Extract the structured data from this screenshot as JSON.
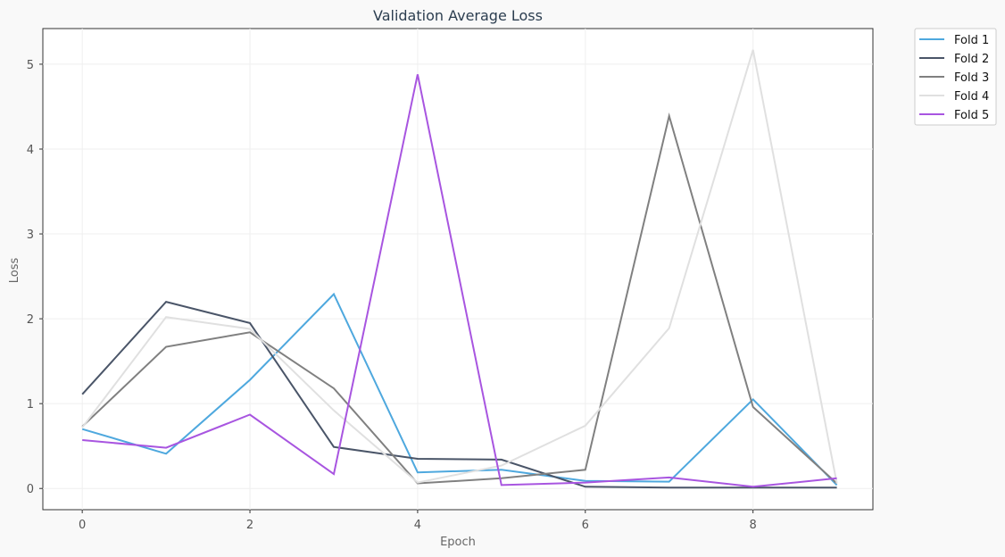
{
  "chart_data": {
    "type": "line",
    "title": "Validation Average Loss",
    "xlabel": "Epoch",
    "ylabel": "Loss",
    "x": [
      0,
      1,
      2,
      3,
      4,
      5,
      6,
      7,
      8,
      9
    ],
    "xlim": [
      -0.47,
      9.43
    ],
    "ylim": [
      -0.25,
      5.42
    ],
    "x_ticks": [
      0,
      2,
      4,
      6,
      8
    ],
    "y_ticks": [
      0,
      1,
      2,
      3,
      4,
      5
    ],
    "grid": true,
    "legend_position": "outside-top-right",
    "series": [
      {
        "name": "Fold 1",
        "color": "#4ea8de",
        "values": [
          0.7,
          0.41,
          1.28,
          2.29,
          0.19,
          0.22,
          0.09,
          0.08,
          1.05,
          0.04
        ]
      },
      {
        "name": "Fold 2",
        "color": "#4a5568",
        "values": [
          1.11,
          2.2,
          1.95,
          0.49,
          0.35,
          0.34,
          0.02,
          0.01,
          0.01,
          0.01
        ]
      },
      {
        "name": "Fold 3",
        "color": "#808080",
        "values": [
          0.73,
          1.67,
          1.84,
          1.18,
          0.06,
          0.12,
          0.22,
          4.39,
          0.96,
          0.06
        ]
      },
      {
        "name": "Fold 4",
        "color": "#e0e0e0",
        "values": [
          0.72,
          2.02,
          1.88,
          0.92,
          0.07,
          0.27,
          0.74,
          1.89,
          5.17,
          0.06
        ]
      },
      {
        "name": "Fold 5",
        "color": "#a855e0",
        "values": [
          0.57,
          0.48,
          0.87,
          0.17,
          4.88,
          0.04,
          0.07,
          0.13,
          0.02,
          0.12
        ]
      }
    ]
  }
}
